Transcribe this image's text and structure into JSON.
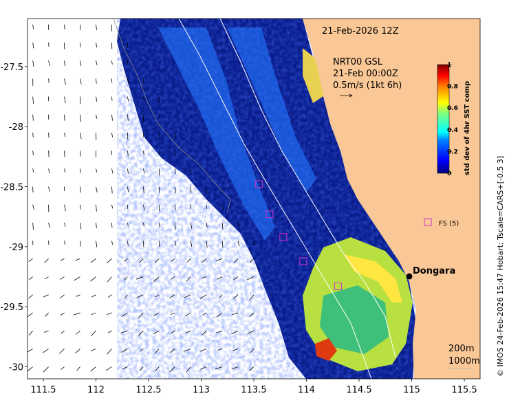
{
  "title": "21-Feb-2026 12Z",
  "currents": {
    "source": "NRT00 GSL",
    "time": "21-Feb 00:00Z",
    "scale_label": "0.5m/s (1kt 6h)"
  },
  "colorbar": {
    "label": "std dev of 4hr SST comp",
    "ticks": [
      "0",
      "0.2",
      "0.4",
      "0.6",
      "0.8",
      "1"
    ],
    "colors": [
      "#00007f",
      "#0000ff",
      "#007fff",
      "#00ffff",
      "#7fff7f",
      "#ffff00",
      "#ff7f00",
      "#ff0000",
      "#7f0000"
    ]
  },
  "credit": "© IMOS 24-Feb-2026 15:47 Hobart; Tscale=CARS+[-0.5 3]",
  "place": {
    "name": "Dongara",
    "lon": 114.93,
    "lat": -29.26
  },
  "legend_item": "FS (5)",
  "contours": [
    "200m",
    "1000m"
  ],
  "colors": {
    "land": "#fac896",
    "no_data": "#ffffff",
    "fs_marker": "#cc33cc",
    "contour": "#ffffff"
  },
  "chart_data": {
    "type": "heatmap",
    "xlabel": "",
    "ylabel": "",
    "xlim": [
      111.35,
      115.65
    ],
    "ylim": [
      -30.1,
      -27.1
    ],
    "x_ticks": [
      "111.5",
      "112",
      "112.5",
      "113",
      "113.5",
      "114",
      "114.5",
      "115",
      "115.5"
    ],
    "y_ticks": [
      "-27.5",
      "-28",
      "-28.5",
      "-29",
      "-29.5",
      "-30"
    ],
    "x_values": [
      111.5,
      112,
      112.5,
      113,
      113.5,
      114,
      114.5,
      115,
      115.5
    ],
    "y_values": [
      -27.5,
      -28,
      -28.5,
      -29,
      -29.5,
      -30
    ],
    "fs_sites": [
      {
        "lon": 113.55,
        "lat": -28.48
      },
      {
        "lon": 113.65,
        "lat": -28.73
      },
      {
        "lon": 113.78,
        "lat": -28.92
      },
      {
        "lon": 113.97,
        "lat": -29.12
      },
      {
        "lon": 114.3,
        "lat": -29.33
      }
    ]
  }
}
